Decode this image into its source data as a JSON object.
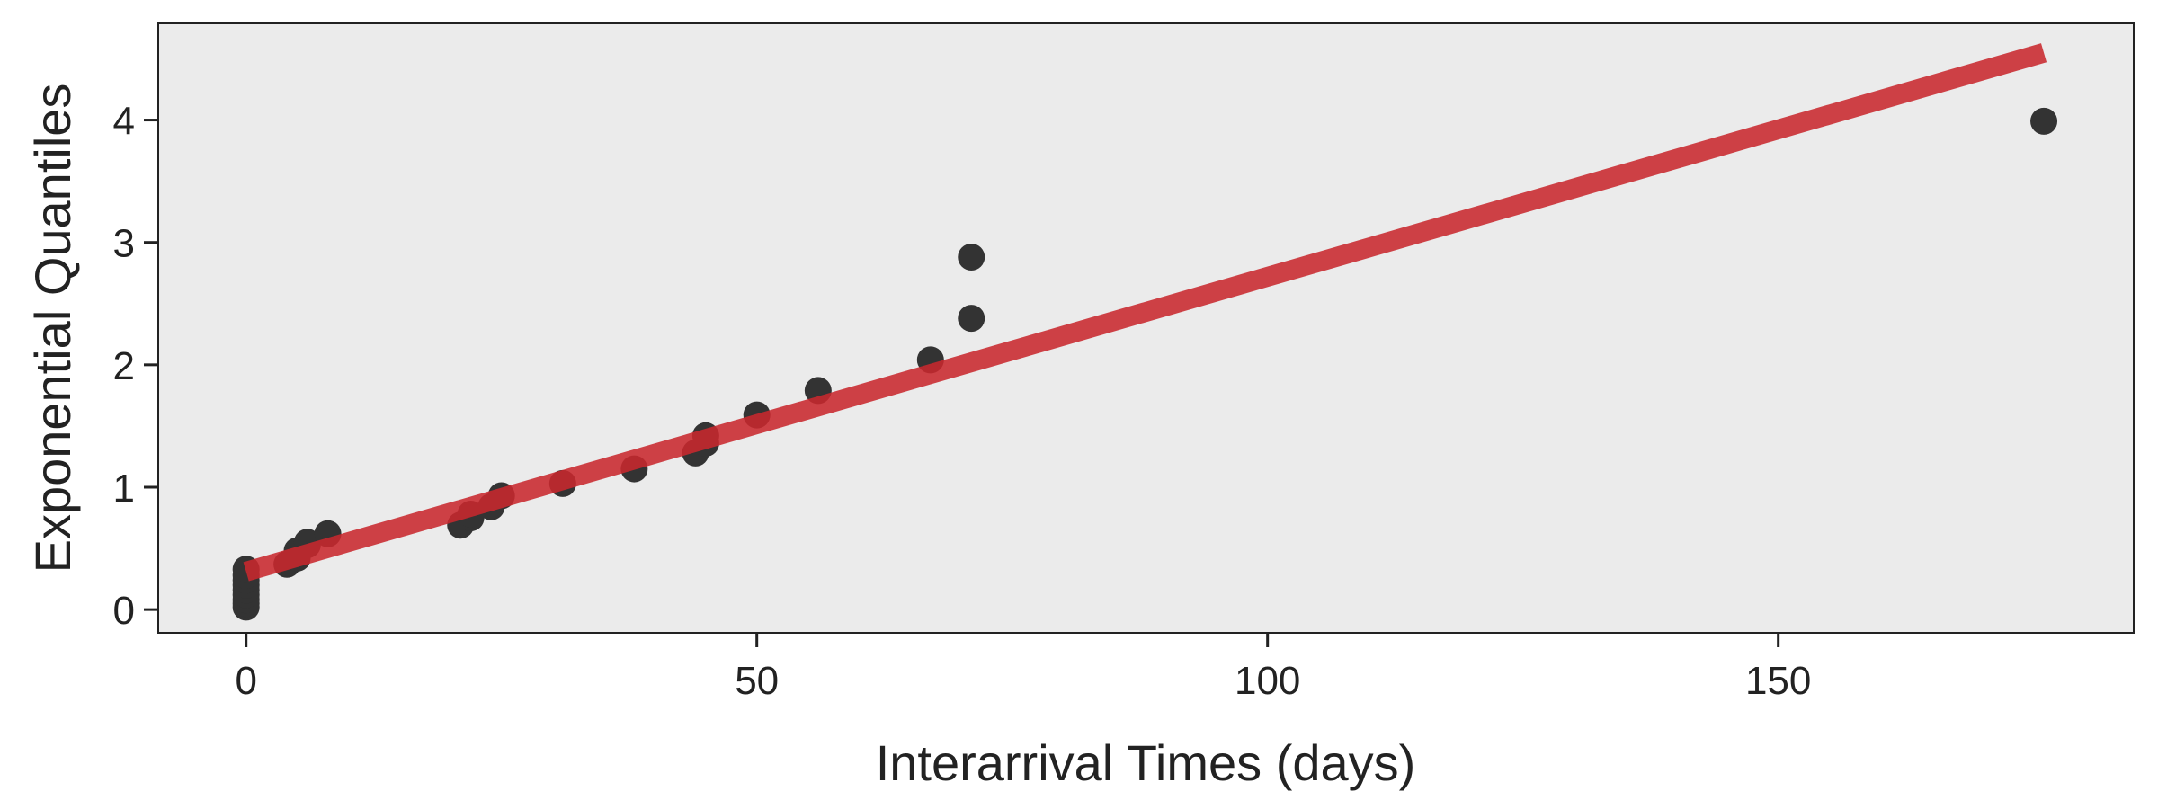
{
  "chart_data": {
    "type": "scatter",
    "x_label": "Interarrival Times (days)",
    "y_label": "Exponential Quantiles",
    "xlim": [
      -8.6,
      184.8
    ],
    "ylim": [
      -0.19,
      4.79
    ],
    "xticks": [
      0,
      50,
      100,
      150
    ],
    "yticks": [
      0,
      1,
      2,
      3,
      4
    ],
    "background": "#ebebeb",
    "points": {
      "color": "#333333",
      "x": [
        0,
        0,
        0,
        0,
        0,
        0,
        0,
        0,
        0,
        4,
        5,
        5,
        6,
        6,
        8,
        21,
        22,
        22,
        24,
        25,
        31,
        38,
        44,
        45,
        45,
        50,
        56,
        67,
        71,
        71,
        176
      ],
      "values": [
        0.02,
        0.05,
        0.08,
        0.12,
        0.16,
        0.2,
        0.24,
        0.28,
        0.33,
        0.37,
        0.42,
        0.48,
        0.53,
        0.55,
        0.62,
        0.69,
        0.75,
        0.78,
        0.84,
        0.93,
        1.03,
        1.15,
        1.28,
        1.36,
        1.42,
        1.59,
        1.79,
        2.04,
        2.38,
        2.88,
        3.99
      ]
    },
    "fit_line": {
      "color": "#c8282e",
      "x": [
        0,
        176
      ],
      "values": [
        0.31,
        4.55
      ]
    }
  }
}
